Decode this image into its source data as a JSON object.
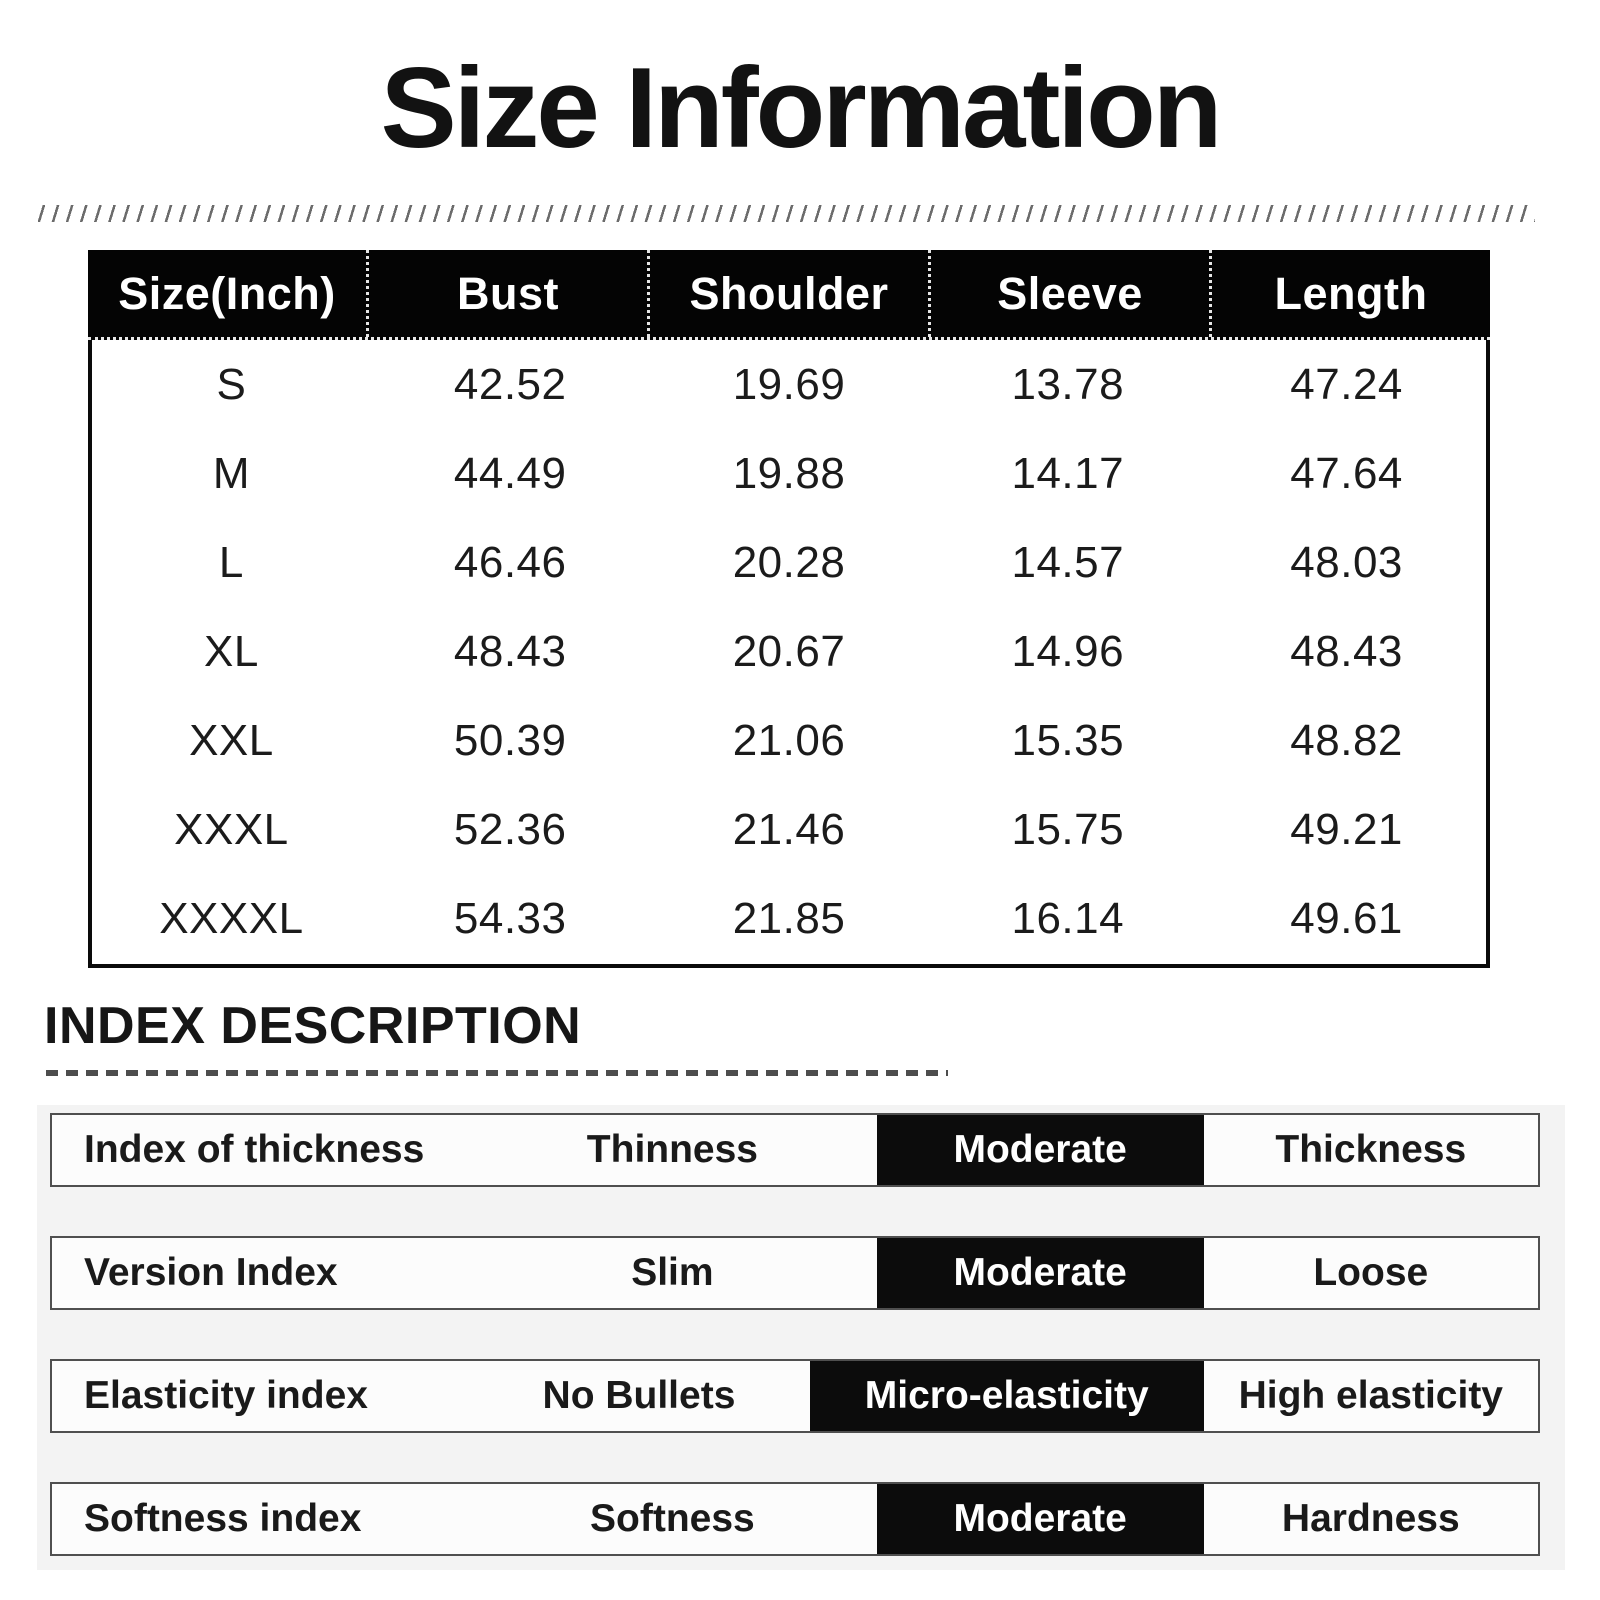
{
  "page_title": "Size Information",
  "chart_data": [
    {
      "type": "table",
      "title": "Size Information",
      "unit": "Inch",
      "columns": [
        "Size(Inch)",
        "Bust",
        "Shoulder",
        "Sleeve",
        "Length"
      ],
      "rows": [
        [
          "S",
          "42.52",
          "19.69",
          "13.78",
          "47.24"
        ],
        [
          "M",
          "44.49",
          "19.88",
          "14.17",
          "47.64"
        ],
        [
          "L",
          "46.46",
          "20.28",
          "14.57",
          "48.03"
        ],
        [
          "XL",
          "48.43",
          "20.67",
          "14.96",
          "48.43"
        ],
        [
          "XXL",
          "50.39",
          "21.06",
          "15.35",
          "48.82"
        ],
        [
          "XXXL",
          "52.36",
          "21.46",
          "15.75",
          "49.21"
        ],
        [
          "XXXXL",
          "54.33",
          "21.85",
          "16.14",
          "49.61"
        ]
      ]
    },
    {
      "type": "table",
      "title": "INDEX DESCRIPTION",
      "rows": [
        [
          "Index of thickness",
          "Thinness",
          "Moderate",
          "Thickness"
        ],
        [
          "Version Index",
          "Slim",
          "Moderate",
          "Loose"
        ],
        [
          "Elasticity index",
          "No Bullets",
          "Micro-elasticity",
          "High elasticity"
        ],
        [
          "Softness index",
          "Softness",
          "Moderate",
          "Hardness"
        ]
      ],
      "highlighted_value_per_row": [
        "Moderate",
        "Moderate",
        "Micro-elasticity",
        "Moderate"
      ]
    }
  ],
  "colors": {
    "table_header_bg": "#040404",
    "table_header_text": "#ffffff",
    "highlight_bg": "#0c0c0c",
    "highlight_text": "#ffffff",
    "panel_bg": "#f3f3f3",
    "index_row_bg": "#fcfcfc",
    "index_row_border": "#4f4f4f",
    "body_text": "#1b1b1b",
    "page_bg": "#ffffff"
  }
}
